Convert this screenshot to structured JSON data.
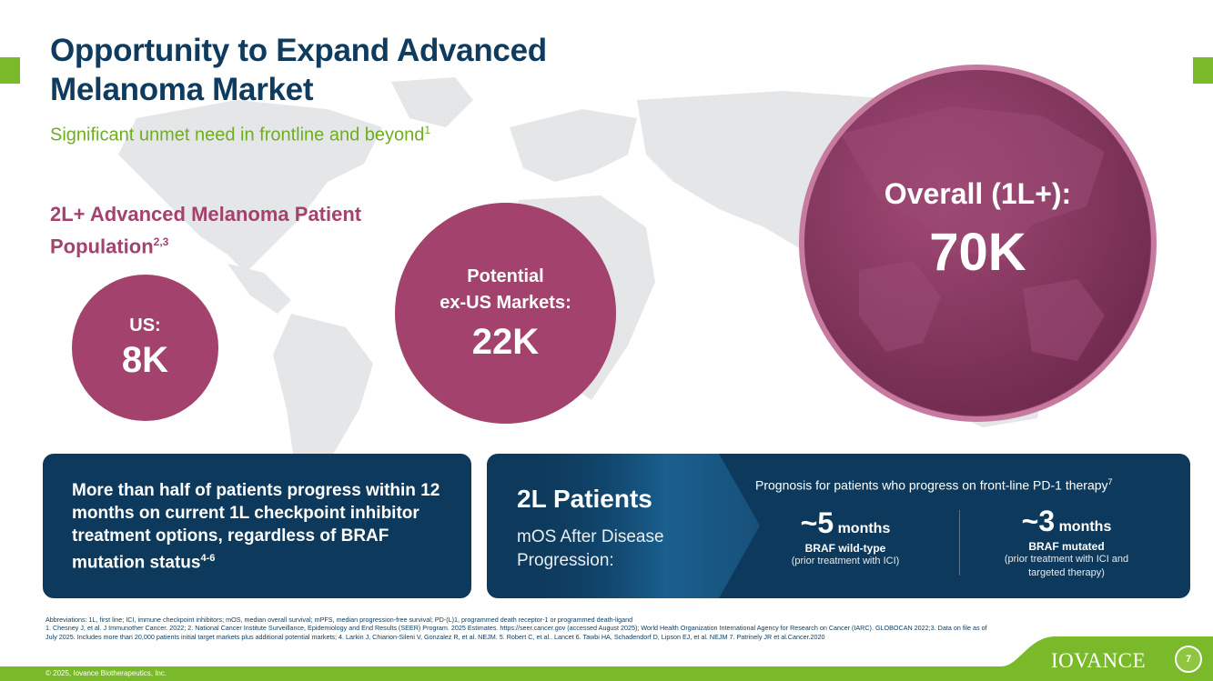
{
  "slide": {
    "title": "Opportunity to Expand Advanced Melanoma Market",
    "subtitle": "Significant unmet need in frontline and beyond",
    "subtitle_ref": "1",
    "population_heading": "2L+ Advanced Melanoma Patient Population",
    "population_ref": "2,3"
  },
  "circles": {
    "us": {
      "label": "US:",
      "value": "8K"
    },
    "exus": {
      "label_line1": "Potential",
      "label_line2": "ex-US Markets:",
      "value": "22K"
    },
    "overall": {
      "label": "Overall (1L+):",
      "value": "70K"
    }
  },
  "left_box": {
    "text": "More than half of patients progress within 12 months on current 1L checkpoint inhibitor treatment options, regardless of BRAF mutation status",
    "ref": "4-6"
  },
  "right_box": {
    "title": "2L Patients",
    "subtitle": "mOS After Disease Progression:",
    "heading": "Prognosis for patients who progress on front-line PD-1 therapy",
    "heading_ref": "7",
    "stat_a": {
      "num": "~5",
      "unit": "months",
      "status": "BRAF wild-type",
      "note": "(prior treatment with ICI)"
    },
    "stat_b": {
      "num": "~3",
      "unit": "months",
      "status": "BRAF mutated",
      "note": "(prior treatment with ICI and targeted therapy)"
    }
  },
  "footnotes": {
    "abbreviations": "Abbreviations: 1L, first line; ICI, immune checkpoint inhibitors; mOS, median overall survival; mPFS, median progression-free survival; PD-(L)1, programmed death receptor-1 or programmed death-ligand",
    "references": "1. Chesney J, et al. J Immunother Cancer. 2022; 2. National Cancer Institute Surveillance, Epidemiology and End Results (SEER) Program. 2025 Estimates. https://seer.cancer.gov (accessed August 2025); World Health Organization International Agency for Research on Cancer (IARC). GLOBOCAN 2022;3. Data on file as of July 2025. Includes more than 20,000 patients initial target markets plus additional potential markets; 4. Larkin J, Chiarion-Sileni V, Gonzalez R, et al. NEJM. 5. Robert C, et al.. Lancet 6. Tawbi HA, Schadendorf D, Lipson EJ, et al. NEJM 7. Patrinely JR et al.Cancer.2020"
  },
  "footer": {
    "copyright": "© 2025, Iovance Biotherapeutics, Inc.",
    "logo": "IOVANCE",
    "page_number": "7"
  },
  "colors": {
    "navy": "#0d3a5c",
    "magenta": "#a3426c",
    "green": "#7ab929",
    "map_gray": "#e4e6e8"
  }
}
